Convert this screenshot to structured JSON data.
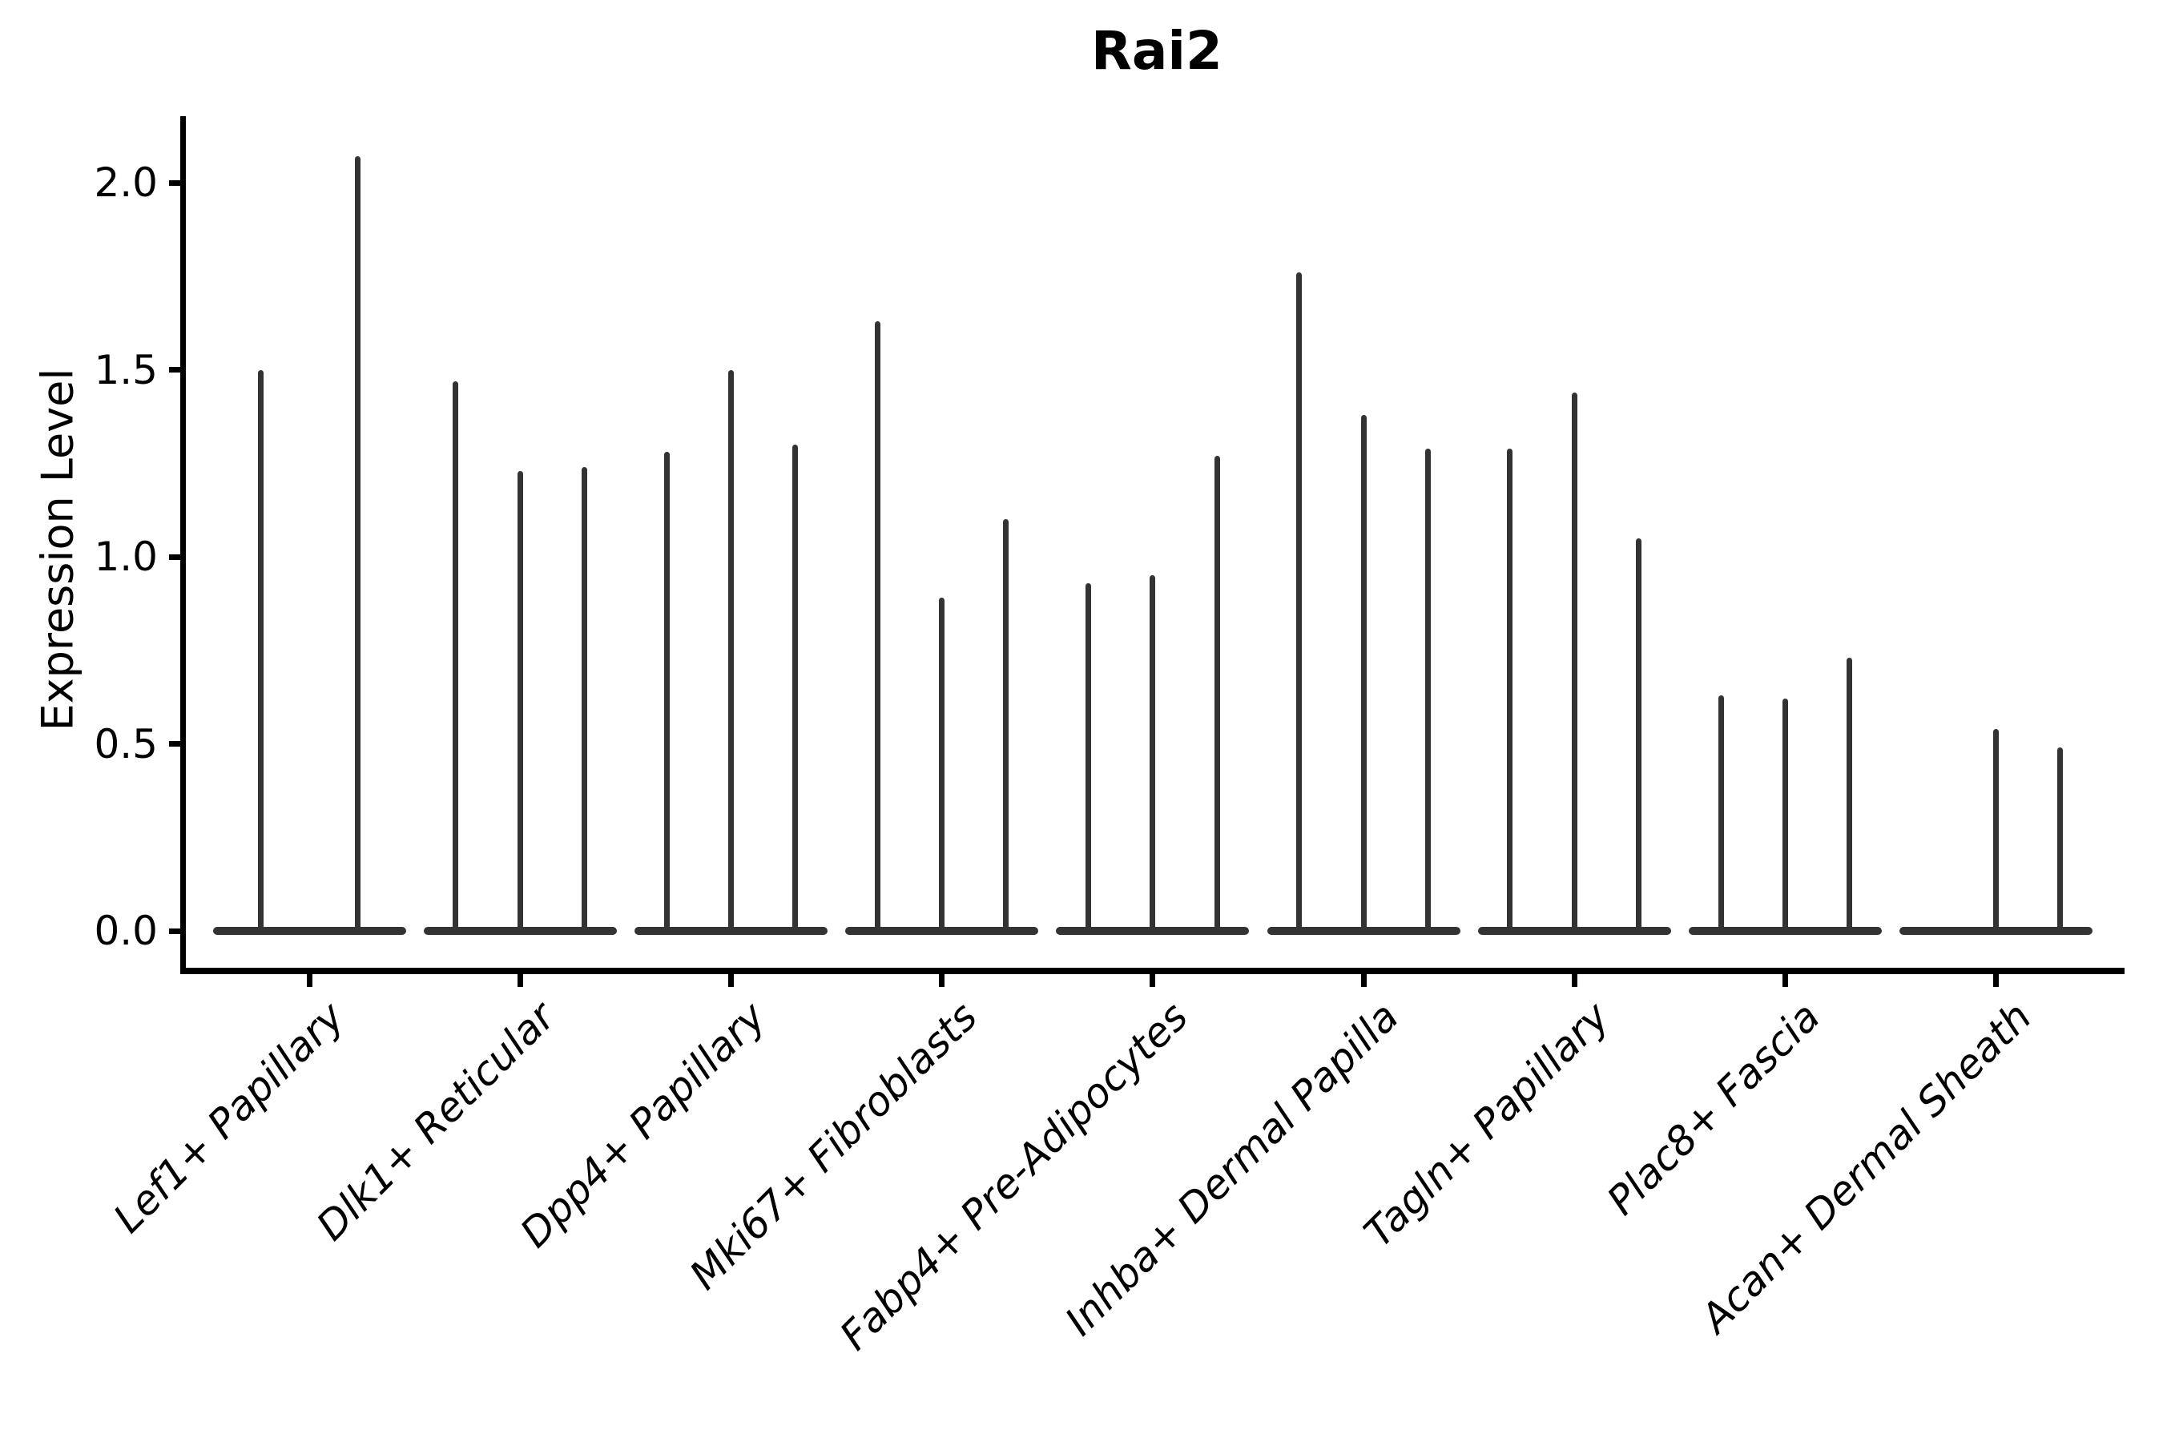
{
  "chart_data": {
    "type": "violin",
    "title": "Rai2",
    "ylabel": "Expression Level",
    "xlabel": "",
    "ylim": [
      0,
      2.18
    ],
    "grid": false,
    "legend_position": "none",
    "violin_color": "#333333",
    "axis_color": "#000000",
    "yticks": [
      {
        "label": "0.0",
        "value": 0.0
      },
      {
        "label": "0.5",
        "value": 0.5
      },
      {
        "label": "1.0",
        "value": 1.0
      },
      {
        "label": "1.5",
        "value": 1.5
      },
      {
        "label": "2.0",
        "value": 2.0
      }
    ],
    "description": "Violin plot of Rai2 expression; each group shows flat violins at 0 with thin spikes rising to the maximum expression value per violin. A maximum of 0 means a flat violin with no spike.",
    "groups": [
      {
        "label": "Lef1+ Papillary",
        "violin_maxima": [
          1.5,
          2.07
        ]
      },
      {
        "label": "Dlk1+ Reticular",
        "violin_maxima": [
          1.47,
          1.23,
          1.24
        ]
      },
      {
        "label": "Dpp4+ Papillary",
        "violin_maxima": [
          1.28,
          1.5,
          1.3
        ]
      },
      {
        "label": "Mki67+ Fibroblasts",
        "violin_maxima": [
          1.63,
          0.89,
          1.1
        ]
      },
      {
        "label": "Fabp4+ Pre-Adipocytes",
        "violin_maxima": [
          0.93,
          0.95,
          1.27
        ]
      },
      {
        "label": "Inhba+ Dermal Papilla",
        "violin_maxima": [
          1.76,
          1.38,
          1.29
        ]
      },
      {
        "label": "Tagln+ Papillary",
        "violin_maxima": [
          1.29,
          1.44,
          1.05
        ]
      },
      {
        "label": "Plac8+ Fascia",
        "violin_maxima": [
          0.63,
          0.62,
          0.73
        ]
      },
      {
        "label": "Acan+ Dermal Sheath",
        "violin_maxima": [
          0.0,
          0.54,
          0.49
        ]
      }
    ]
  }
}
